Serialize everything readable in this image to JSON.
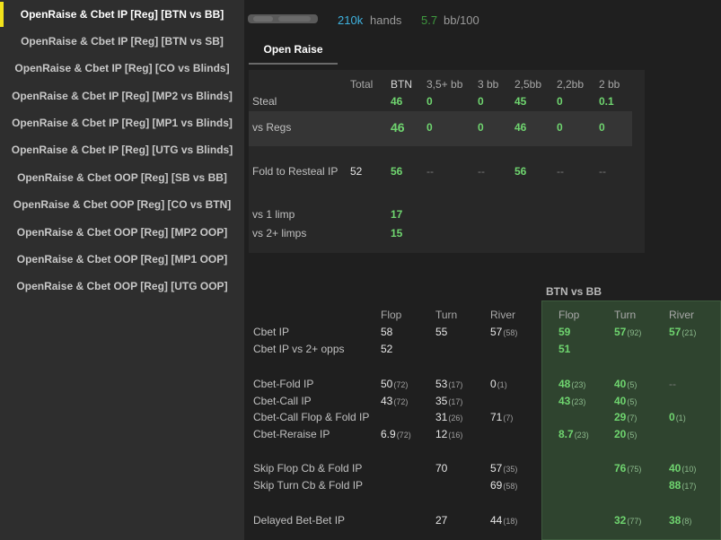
{
  "sidebar": {
    "items": [
      {
        "label": "OpenRaise & Cbet IP [Reg] [BTN vs BB]",
        "active": true
      },
      {
        "label": "OpenRaise & Cbet IP [Reg] [BTN vs SB]"
      },
      {
        "label": "OpenRaise & Cbet IP [Reg] [CO vs Blinds]"
      },
      {
        "label": "OpenRaise & Cbet IP [Reg] [MP2 vs Blinds]"
      },
      {
        "label": "OpenRaise & Cbet IP [Reg] [MP1 vs Blinds]"
      },
      {
        "label": "OpenRaise & Cbet IP [Reg] [UTG vs Blinds]"
      },
      {
        "label": "OpenRaise & Cbet OOP [Reg] [SB vs BB]"
      },
      {
        "label": "OpenRaise & Cbet OOP [Reg] [CO vs BTN]"
      },
      {
        "label": "OpenRaise & Cbet OOP [Reg] [MP2 OOP]"
      },
      {
        "label": "OpenRaise & Cbet OOP [Reg] [MP1 OOP]"
      },
      {
        "label": "OpenRaise & Cbet OOP [Reg] [UTG OOP]"
      }
    ]
  },
  "header": {
    "hands_value": "210k",
    "hands_label": "hands",
    "bb_value": "5.7",
    "bb_label": "bb/100"
  },
  "tabs": [
    {
      "label": "Open Raise"
    }
  ],
  "colors": {
    "accent": "#f2e21b",
    "hands": "#3fb3e0",
    "bb100": "#3f9a3f",
    "good": "#6fd56f"
  },
  "open_raise": {
    "columns": [
      "Total",
      "BTN",
      "3,5+ bb",
      "3 bb",
      "2,5bb",
      "2,2bb",
      "2 bb"
    ],
    "rows": [
      {
        "label": "Steal",
        "cells": [
          "",
          "46",
          "0",
          "0",
          "45",
          "0",
          "0.1"
        ]
      },
      {
        "label": "vs Regs",
        "cells": [
          "",
          "46",
          "0",
          "0",
          "46",
          "0",
          "0"
        ]
      },
      {
        "label": "Fold to Resteal IP",
        "cells": [
          "52",
          "56",
          "--",
          "--",
          "56",
          "--",
          "--"
        ]
      },
      {
        "label": "vs 1 limp",
        "cells": [
          "",
          "17",
          "",
          "",
          "",
          "",
          ""
        ]
      },
      {
        "label": "vs 2+ limps",
        "cells": [
          "",
          "15",
          "",
          "",
          "",
          "",
          ""
        ]
      }
    ]
  },
  "cbet": {
    "group_title": "BTN vs BB",
    "columns": [
      "Flop",
      "Turn",
      "River",
      "Flop",
      "Turn",
      "River"
    ],
    "rows": [
      {
        "label": "Cbet IP",
        "cells": [
          [
            "58",
            ""
          ],
          [
            "55",
            ""
          ],
          [
            "57",
            "(58)"
          ],
          [
            "59",
            ""
          ],
          [
            "57",
            "(92)"
          ],
          [
            "57",
            "(21)"
          ]
        ]
      },
      {
        "label": "Cbet IP vs 2+ opps",
        "cells": [
          [
            "52",
            ""
          ],
          [
            "",
            ""
          ],
          [
            "",
            ""
          ],
          [
            "51",
            ""
          ],
          [
            "",
            ""
          ],
          [
            "",
            ""
          ]
        ]
      },
      {
        "label": "Cbet-Fold IP",
        "cells": [
          [
            "50",
            "(72)"
          ],
          [
            "53",
            "(17)"
          ],
          [
            "0",
            "(1)"
          ],
          [
            "48",
            "(23)"
          ],
          [
            "40",
            "(5)"
          ],
          [
            "--",
            ""
          ]
        ]
      },
      {
        "label": "Cbet-Call IP",
        "cells": [
          [
            "43",
            "(72)"
          ],
          [
            "35",
            "(17)"
          ],
          [
            "",
            ""
          ],
          [
            "43",
            "(23)"
          ],
          [
            "40",
            "(5)"
          ],
          [
            "",
            ""
          ]
        ]
      },
      {
        "label": "Cbet-Call Flop & Fold IP",
        "cells": [
          [
            "",
            ""
          ],
          [
            "31",
            "(26)"
          ],
          [
            "71",
            "(7)"
          ],
          [
            "",
            ""
          ],
          [
            "29",
            "(7)"
          ],
          [
            "0",
            "(1)"
          ]
        ]
      },
      {
        "label": "Cbet-Reraise IP",
        "cells": [
          [
            "6.9",
            "(72)"
          ],
          [
            "12",
            "(16)"
          ],
          [
            "",
            ""
          ],
          [
            "8.7",
            "(23)"
          ],
          [
            "20",
            "(5)"
          ],
          [
            "",
            ""
          ]
        ]
      },
      {
        "label": "Skip Flop Cb & Fold IP",
        "cells": [
          [
            "",
            ""
          ],
          [
            "70",
            ""
          ],
          [
            "57",
            "(35)"
          ],
          [
            "",
            ""
          ],
          [
            "76",
            "(75)"
          ],
          [
            "40",
            "(10)"
          ]
        ]
      },
      {
        "label": "Skip Turn Cb & Fold IP",
        "cells": [
          [
            "",
            ""
          ],
          [
            "",
            ""
          ],
          [
            "69",
            "(58)"
          ],
          [
            "",
            ""
          ],
          [
            "",
            ""
          ],
          [
            "88",
            "(17)"
          ]
        ]
      },
      {
        "label": "Delayed Bet-Bet IP",
        "cells": [
          [
            "",
            ""
          ],
          [
            "27",
            ""
          ],
          [
            "44",
            "(18)"
          ],
          [
            "",
            ""
          ],
          [
            "32",
            "(77)"
          ],
          [
            "38",
            "(8)"
          ]
        ]
      }
    ]
  }
}
